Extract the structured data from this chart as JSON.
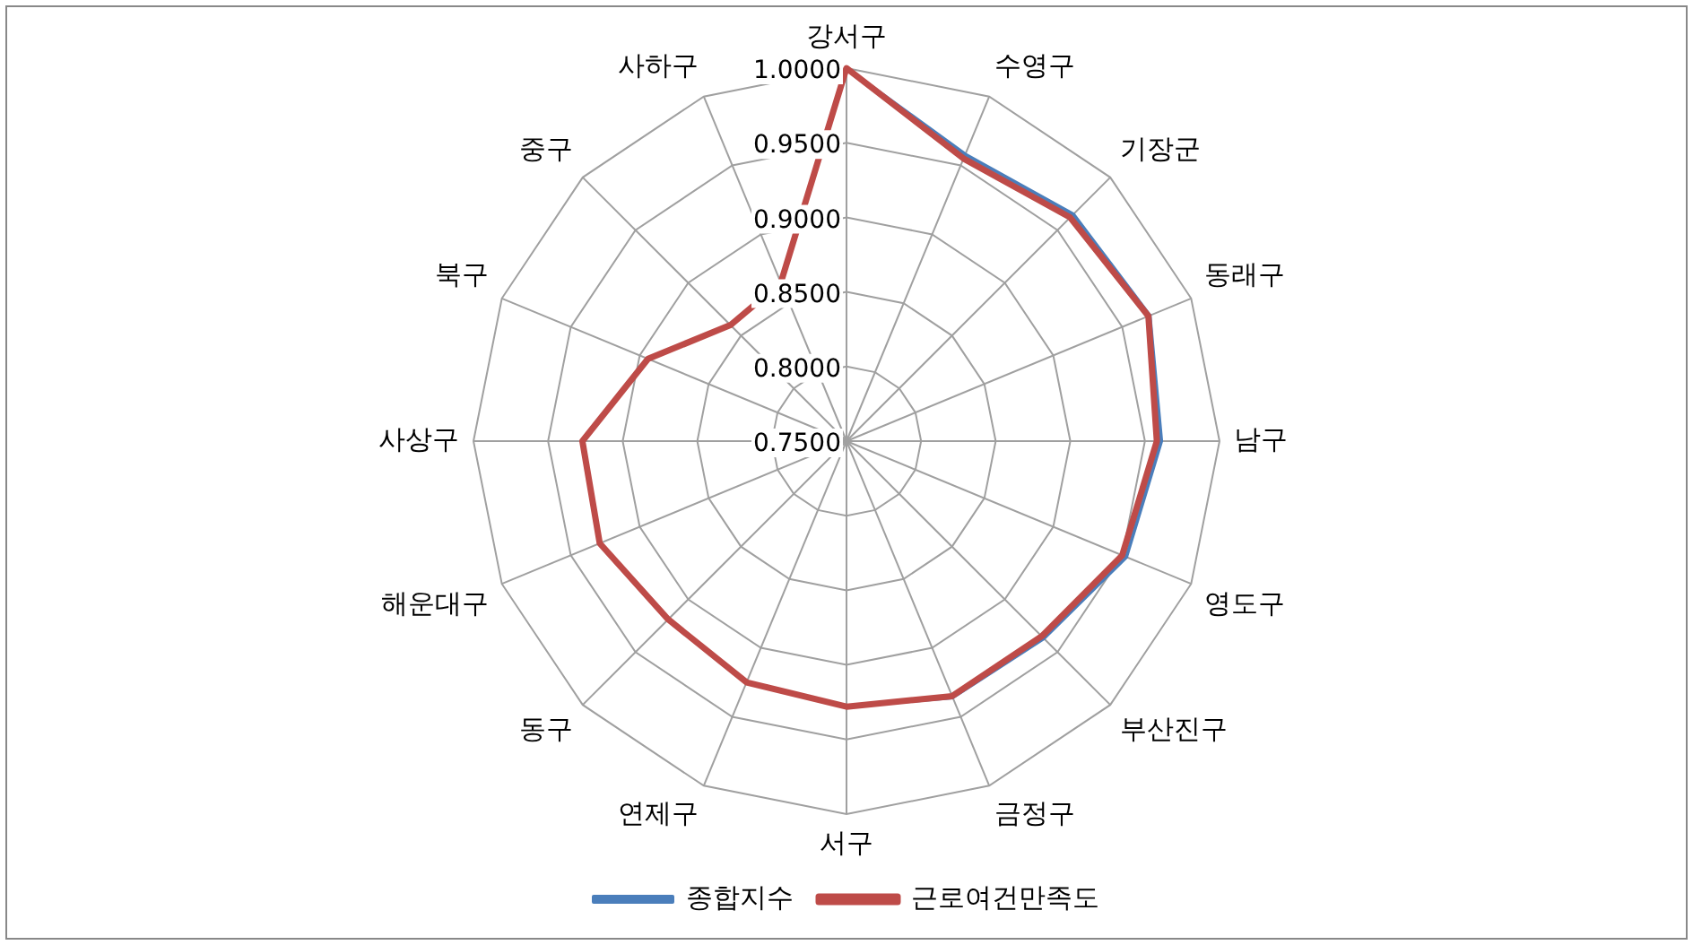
{
  "chart_data": {
    "type": "radar",
    "categories": [
      "강서구",
      "수영구",
      "기장군",
      "동래구",
      "남구",
      "영도구",
      "부산진구",
      "금정구",
      "서구",
      "연제구",
      "동구",
      "해운대구",
      "사상구",
      "북구",
      "중구",
      "사하구"
    ],
    "series": [
      {
        "name": "종합지수",
        "color": "#4a7ebb",
        "values": [
          1.0,
          0.958,
          0.965,
          0.97,
          0.961,
          0.953,
          0.937,
          0.936,
          0.928,
          0.925,
          0.919,
          0.929,
          0.927,
          0.894,
          0.86,
          0.865
        ]
      },
      {
        "name": "근로여건만족도",
        "color": "#be4b48",
        "values": [
          1.0,
          0.955,
          0.962,
          0.969,
          0.958,
          0.95,
          0.935,
          0.935,
          0.928,
          0.925,
          0.919,
          0.929,
          0.927,
          0.894,
          0.86,
          0.865
        ]
      }
    ],
    "ylim": [
      0.75,
      1.0
    ],
    "yticks": [
      {
        "value": 0.75,
        "label": "0.7500"
      },
      {
        "value": 0.8,
        "label": "0.8000"
      },
      {
        "value": 0.85,
        "label": "0.8500"
      },
      {
        "value": 0.9,
        "label": "0.9000"
      },
      {
        "value": 0.95,
        "label": "0.9500"
      },
      {
        "value": 1.0,
        "label": "1.0000"
      }
    ],
    "grid": true,
    "legend": "bottom",
    "marker": "none",
    "line_style": "solid"
  }
}
